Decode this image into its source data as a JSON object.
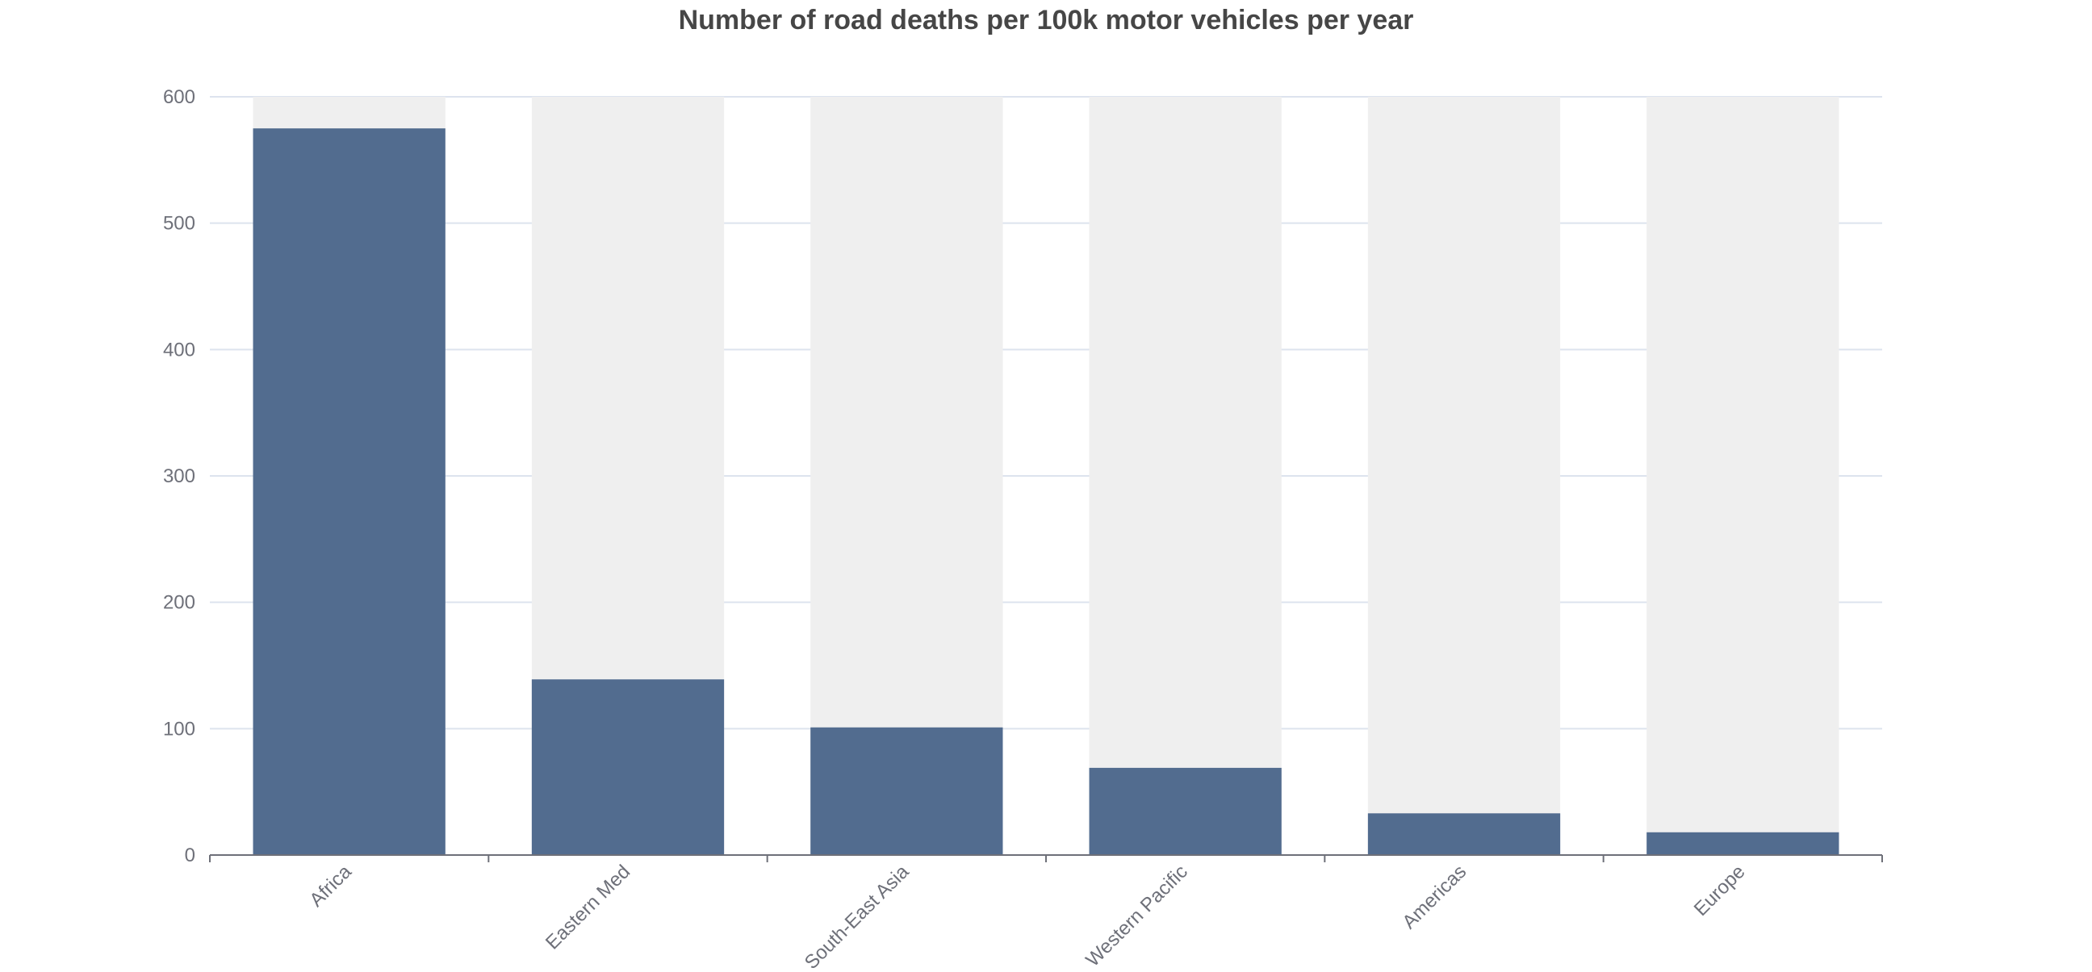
{
  "chart_data": {
    "type": "bar",
    "title": "Number of road deaths per 100k motor vehicles per year",
    "xlabel": "",
    "ylabel": "",
    "categories": [
      "Africa",
      "Eastern Med",
      "South-East Asia",
      "Western Pacific",
      "Americas",
      "Europe"
    ],
    "values": [
      575,
      139,
      101,
      69,
      33,
      18
    ],
    "ylim": [
      0,
      600
    ],
    "yticks": [
      0,
      100,
      200,
      300,
      400,
      500,
      600
    ],
    "grid": true,
    "background_bars": true,
    "legend": "none",
    "colors": {
      "bar": "#526c8f",
      "background_bar": "#efefef",
      "grid": "#dde3ee",
      "axis": "#6e7079",
      "title": "#464646"
    }
  }
}
